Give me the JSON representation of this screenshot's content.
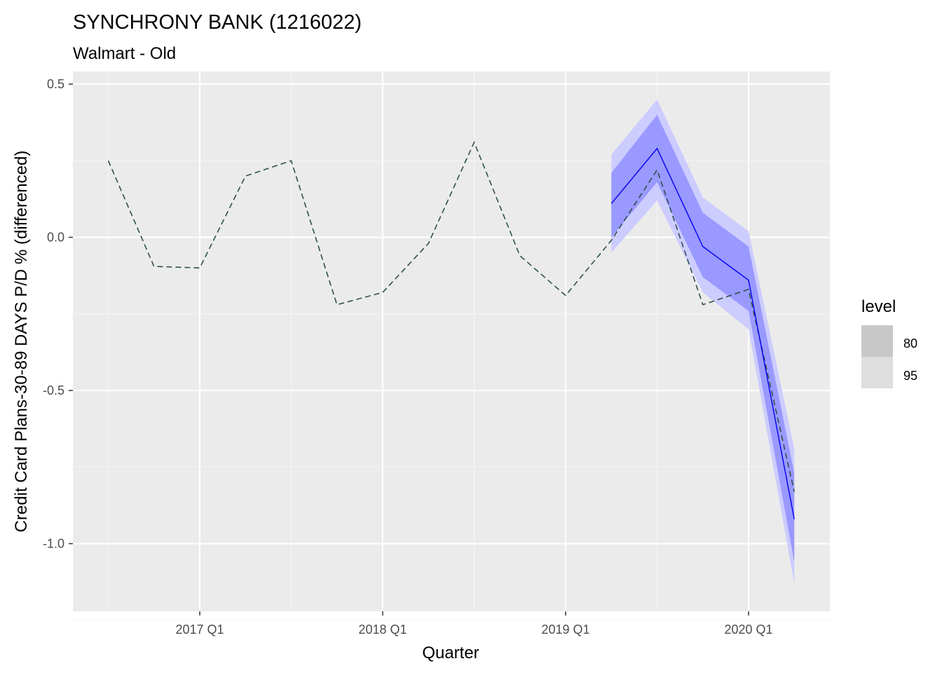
{
  "chart_data": {
    "type": "line",
    "title": "SYNCHRONY BANK (1216022)",
    "subtitle": "Walmart - Old",
    "xlabel": "Quarter",
    "ylabel": "Credit Card Plans-30-89 DAYS P/D % (differenced)",
    "ylim": [
      -1.2,
      0.5
    ],
    "y_ticks": [
      0.5,
      0.0,
      -0.5,
      -1.0
    ],
    "y_tick_labels": [
      "0.5",
      "0.0",
      "-0.5",
      "-1.0"
    ],
    "x_range": [
      2016.3,
      2020.43
    ],
    "x_ticks": [
      2017.0,
      2018.0,
      2019.0,
      2020.0
    ],
    "x_tick_labels": [
      "2017 Q1",
      "2018 Q1",
      "2019 Q1",
      "2020 Q1"
    ],
    "grid": true,
    "legend": {
      "position": "right",
      "title": "level",
      "items": [
        {
          "label": "80",
          "color": "#c8c8c8"
        },
        {
          "label": "95",
          "color": "#dedede"
        }
      ]
    },
    "series": [
      {
        "style": "dashed",
        "color": "#2f4f4f",
        "x": [
          "2016 Q3",
          "2016 Q4",
          "2017 Q1",
          "2017 Q2",
          "2017 Q3",
          "2017 Q4",
          "2018 Q1",
          "2018 Q2",
          "2018 Q3",
          "2018 Q4",
          "2019 Q1",
          "2019 Q2",
          "2019 Q3",
          "2019 Q4",
          "2020 Q1",
          "2020 Q2"
        ],
        "values": [
          0.25,
          -0.095,
          -0.1,
          0.2,
          0.25,
          -0.22,
          -0.18,
          -0.02,
          0.31,
          -0.06,
          -0.19,
          -0.01,
          0.22,
          -0.22,
          -0.17,
          -0.83
        ]
      },
      {
        "style": "solid",
        "color": "#0000ee",
        "x": [
          "2019 Q2",
          "2019 Q3",
          "2019 Q4",
          "2020 Q1",
          "2020 Q2"
        ],
        "values": [
          0.11,
          0.29,
          -0.03,
          -0.14,
          -0.92
        ]
      }
    ],
    "bands": [
      {
        "level": "95",
        "color": "#ccccff",
        "x": [
          "2019 Q2",
          "2019 Q3",
          "2019 Q4",
          "2020 Q1",
          "2020 Q2"
        ],
        "lower": [
          -0.05,
          0.12,
          -0.18,
          -0.3,
          -1.13
        ],
        "upper": [
          0.27,
          0.45,
          0.13,
          0.02,
          -0.69
        ]
      },
      {
        "level": "80",
        "color": "#9999ff",
        "x": [
          "2019 Q2",
          "2019 Q3",
          "2019 Q4",
          "2020 Q1",
          "2020 Q2"
        ],
        "lower": [
          0.0,
          0.18,
          -0.13,
          -0.24,
          -1.06
        ],
        "upper": [
          0.21,
          0.4,
          0.08,
          -0.03,
          -0.77
        ]
      }
    ],
    "colors": {
      "panel_bg": "#ebebeb",
      "grid_major": "#ffffff",
      "grid_minor": "#f5f5f5"
    }
  }
}
